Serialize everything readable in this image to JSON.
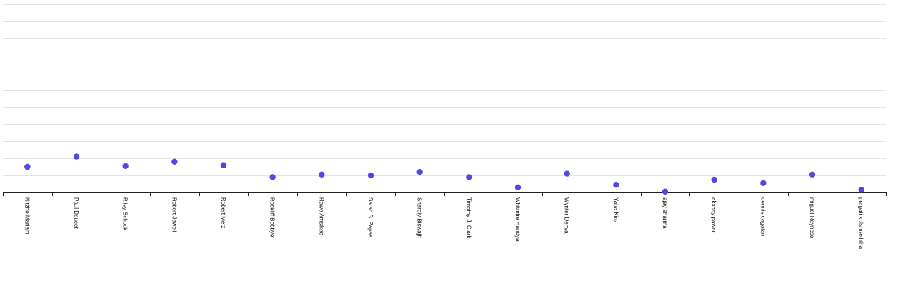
{
  "chart_data": {
    "type": "scatter",
    "title": "",
    "xlabel": "",
    "ylabel": "",
    "grid": true,
    "legend": "none",
    "ylim": [
      0,
      11
    ],
    "categories": [
      "Nitzhe Mariam",
      "Paul Doucet",
      "Riley Schock",
      "Robert Jewell",
      "Robert Metz",
      "Rockliff Bobbye",
      "Rowe Amsikee",
      "Sarah S. Papas",
      "Sharely Biswajit",
      "Timothy J. Clark",
      "Whitmire Handyal",
      "Wynter Denya",
      "Yaba Kinz",
      "ajay sharma",
      "akshay pawar",
      "dennis cagatan",
      "miguel Reynoso",
      "pragati kulshreshtha"
    ],
    "series": [
      {
        "values": [
          1.5,
          2.1,
          1.55,
          1.8,
          1.6,
          0.9,
          1.05,
          1.0,
          1.2,
          0.9,
          0.3,
          1.1,
          0.45,
          0.05,
          0.75,
          0.55,
          1.05,
          0.15
        ]
      }
    ],
    "colors": {
      "point": "#5048e5",
      "grid": "#e5e5e5",
      "axis": "#222222"
    }
  }
}
